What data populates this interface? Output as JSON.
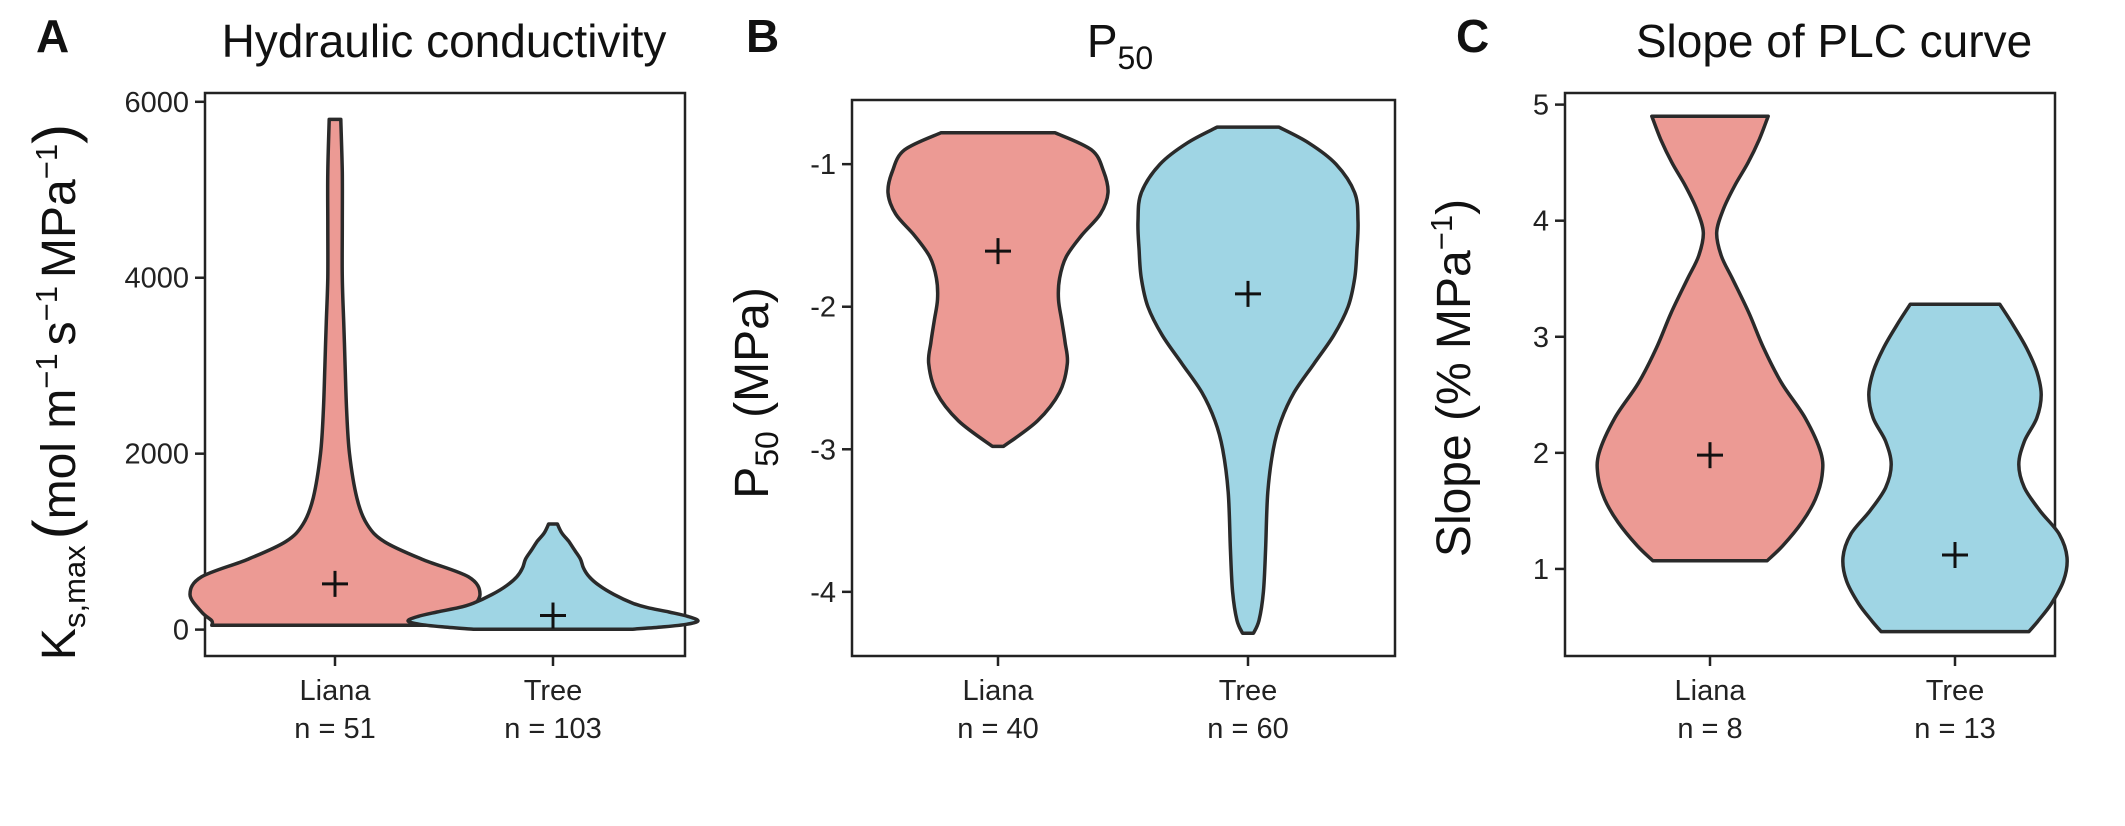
{
  "colors": {
    "liana": "#ec9a94",
    "tree": "#9fd5e4",
    "outline": "#2a2a2a"
  },
  "chart_data": [
    {
      "type": "violin",
      "panel_letter": "A",
      "title": "Hydraulic conductivity",
      "ylabel": {
        "main": "K",
        "sub": "s,max",
        "rest": "(mol m",
        "s": "s",
        "mpa": "MPa",
        "exp": "−1",
        "close": ")"
      },
      "ylim": [
        -300,
        6100
      ],
      "yticks": [
        0,
        2000,
        4000,
        6000
      ],
      "ytick_labels": [
        "0",
        "2000",
        "4000",
        "6000"
      ],
      "grid": false,
      "categories": [
        "Liana",
        "Tree"
      ],
      "n_labels": [
        "n = 51",
        "n = 103"
      ],
      "series": [
        {
          "group": "Liana",
          "mean": 520,
          "outline": [
            [
              5800,
              0.04
            ],
            [
              5200,
              0.05
            ],
            [
              4600,
              0.05
            ],
            [
              4000,
              0.05
            ],
            [
              3500,
              0.06
            ],
            [
              3000,
              0.07
            ],
            [
              2500,
              0.08
            ],
            [
              2000,
              0.1
            ],
            [
              1500,
              0.15
            ],
            [
              1200,
              0.22
            ],
            [
              1000,
              0.34
            ],
            [
              800,
              0.6
            ],
            [
              600,
              0.92
            ],
            [
              400,
              1.0
            ],
            [
              200,
              0.92
            ],
            [
              100,
              0.85
            ],
            [
              50,
              0.85
            ]
          ]
        },
        {
          "group": "Tree",
          "mean": 160,
          "outline": [
            [
              1200,
              0.03
            ],
            [
              1100,
              0.06
            ],
            [
              1000,
              0.11
            ],
            [
              900,
              0.15
            ],
            [
              800,
              0.19
            ],
            [
              700,
              0.21
            ],
            [
              600,
              0.25
            ],
            [
              500,
              0.32
            ],
            [
              400,
              0.42
            ],
            [
              300,
              0.55
            ],
            [
              250,
              0.65
            ],
            [
              200,
              0.8
            ],
            [
              150,
              0.93
            ],
            [
              100,
              1.0
            ],
            [
              60,
              0.92
            ],
            [
              30,
              0.75
            ],
            [
              5,
              0.55
            ]
          ]
        }
      ]
    },
    {
      "type": "violin",
      "panel_letter": "B",
      "title": {
        "main": "P",
        "sub": "50"
      },
      "ylabel": {
        "main": "P",
        "sub": "50",
        "rest": " (MPa)"
      },
      "ylim": [
        -4.45,
        -0.55
      ],
      "yticks": [
        -1,
        -2,
        -3,
        -4
      ],
      "ytick_labels": [
        "-1",
        "-2",
        "-3",
        "-4"
      ],
      "grid": false,
      "categories": [
        "Liana",
        "Tree"
      ],
      "n_labels": [
        "n = 40",
        "n = 60"
      ],
      "series": [
        {
          "group": "Liana",
          "mean": -1.61,
          "outline": [
            [
              -0.78,
              0.52
            ],
            [
              -0.9,
              0.85
            ],
            [
              -1.05,
              0.96
            ],
            [
              -1.2,
              1.0
            ],
            [
              -1.35,
              0.93
            ],
            [
              -1.5,
              0.76
            ],
            [
              -1.65,
              0.62
            ],
            [
              -1.8,
              0.56
            ],
            [
              -1.95,
              0.55
            ],
            [
              -2.1,
              0.58
            ],
            [
              -2.25,
              0.61
            ],
            [
              -2.4,
              0.63
            ],
            [
              -2.6,
              0.56
            ],
            [
              -2.8,
              0.36
            ],
            [
              -2.98,
              0.05
            ]
          ]
        },
        {
          "group": "Tree",
          "mean": -1.91,
          "outline": [
            [
              -0.74,
              0.28
            ],
            [
              -0.85,
              0.55
            ],
            [
              -1.0,
              0.8
            ],
            [
              -1.2,
              0.97
            ],
            [
              -1.4,
              1.0
            ],
            [
              -1.6,
              0.99
            ],
            [
              -1.8,
              0.97
            ],
            [
              -2.0,
              0.91
            ],
            [
              -2.2,
              0.78
            ],
            [
              -2.4,
              0.6
            ],
            [
              -2.6,
              0.42
            ],
            [
              -2.8,
              0.3
            ],
            [
              -3.0,
              0.23
            ],
            [
              -3.3,
              0.18
            ],
            [
              -3.7,
              0.16
            ],
            [
              -4.0,
              0.14
            ],
            [
              -4.2,
              0.1
            ],
            [
              -4.29,
              0.05
            ]
          ]
        }
      ]
    },
    {
      "type": "violin",
      "panel_letter": "C",
      "title": "Slope of PLC curve",
      "ylabel": {
        "main": "Slope (% MPa",
        "exp": "−1",
        "close": ")"
      },
      "ylim": [
        0.25,
        5.1
      ],
      "yticks": [
        1,
        2,
        3,
        4,
        5
      ],
      "ytick_labels": [
        "1",
        "2",
        "3",
        "4",
        "5"
      ],
      "grid": false,
      "categories": [
        "Liana",
        "Tree"
      ],
      "n_labels": [
        "n = 8",
        "n = 13"
      ],
      "series": [
        {
          "group": "Liana",
          "mean": 1.98,
          "outline": [
            [
              4.9,
              0.52
            ],
            [
              4.7,
              0.44
            ],
            [
              4.5,
              0.34
            ],
            [
              4.3,
              0.22
            ],
            [
              4.1,
              0.12
            ],
            [
              3.9,
              0.06
            ],
            [
              3.7,
              0.1
            ],
            [
              3.5,
              0.2
            ],
            [
              3.2,
              0.35
            ],
            [
              2.9,
              0.48
            ],
            [
              2.6,
              0.64
            ],
            [
              2.3,
              0.85
            ],
            [
              2.0,
              0.99
            ],
            [
              1.8,
              1.0
            ],
            [
              1.6,
              0.94
            ],
            [
              1.4,
              0.82
            ],
            [
              1.2,
              0.65
            ],
            [
              1.07,
              0.51
            ]
          ]
        },
        {
          "group": "Tree",
          "mean": 1.12,
          "outline": [
            [
              3.28,
              0.4
            ],
            [
              3.1,
              0.52
            ],
            [
              2.9,
              0.64
            ],
            [
              2.7,
              0.73
            ],
            [
              2.5,
              0.77
            ],
            [
              2.3,
              0.73
            ],
            [
              2.1,
              0.62
            ],
            [
              1.9,
              0.57
            ],
            [
              1.7,
              0.62
            ],
            [
              1.5,
              0.76
            ],
            [
              1.3,
              0.93
            ],
            [
              1.1,
              1.0
            ],
            [
              0.9,
              0.97
            ],
            [
              0.7,
              0.86
            ],
            [
              0.55,
              0.74
            ],
            [
              0.46,
              0.66
            ]
          ]
        }
      ]
    }
  ]
}
